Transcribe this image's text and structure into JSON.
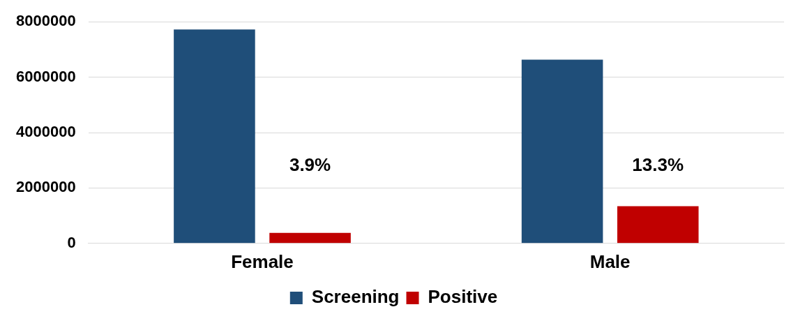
{
  "chart_data": {
    "type": "bar",
    "categories": [
      "Female",
      "Male"
    ],
    "series": [
      {
        "name": "Screening",
        "color": "#1f4e79",
        "values": [
          7720000,
          6630000
        ]
      },
      {
        "name": "Positive",
        "color": "#c00000",
        "values": [
          380000,
          1340000
        ]
      }
    ],
    "ylim": [
      0,
      8000000
    ],
    "yticks": [
      0,
      2000000,
      4000000,
      6000000,
      8000000
    ],
    "grid": "y",
    "legend": "bottom",
    "annotations": [
      "3.9%",
      "13.3%"
    ]
  }
}
